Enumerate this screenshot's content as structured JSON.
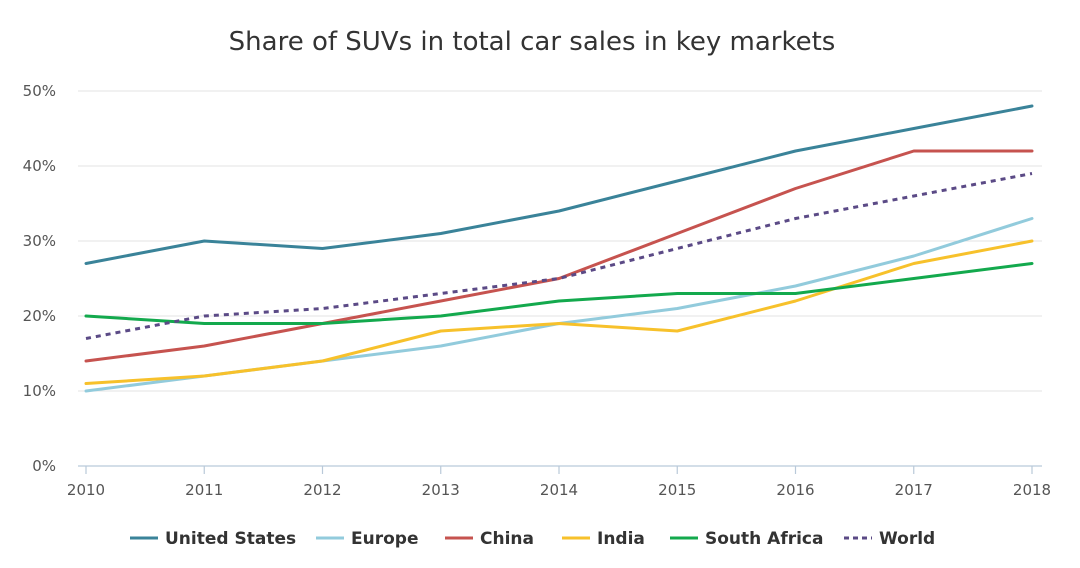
{
  "chart_data": {
    "type": "line",
    "title": "Share of SUVs in total car sales in key markets",
    "xlabel": "",
    "ylabel": "",
    "x": [
      2010,
      2011,
      2012,
      2013,
      2014,
      2015,
      2016,
      2017,
      2018
    ],
    "x_tick_labels": [
      "2010",
      "2011",
      "2012",
      "2013",
      "2014",
      "2015",
      "2016",
      "2017",
      "2018"
    ],
    "ylim": [
      0,
      50
    ],
    "y_ticks": [
      0,
      10,
      20,
      30,
      40,
      50
    ],
    "y_tick_labels": [
      "0%",
      "10%",
      "20%",
      "30%",
      "40%",
      "50%"
    ],
    "grid": true,
    "legend_position": "bottom",
    "series": [
      {
        "name": "United States",
        "color": "#3a8399",
        "dashed": false,
        "values": [
          27,
          30,
          29,
          31,
          34,
          38,
          42,
          45,
          48
        ]
      },
      {
        "name": "Europe",
        "color": "#92cbdc",
        "dashed": false,
        "values": [
          10,
          12,
          14,
          16,
          19,
          21,
          24,
          28,
          33
        ]
      },
      {
        "name": "China",
        "color": "#c6534f",
        "dashed": false,
        "values": [
          14,
          16,
          19,
          22,
          25,
          31,
          37,
          42,
          42
        ]
      },
      {
        "name": "India",
        "color": "#f7c12b",
        "dashed": false,
        "values": [
          11,
          12,
          14,
          18,
          19,
          18,
          22,
          27,
          30
        ]
      },
      {
        "name": "South Africa",
        "color": "#13a94d",
        "dashed": false,
        "values": [
          20,
          19,
          19,
          20,
          22,
          23,
          23,
          25,
          27
        ]
      },
      {
        "name": "World",
        "color": "#5b4a86",
        "dashed": true,
        "values": [
          17,
          20,
          21,
          23,
          25,
          29,
          33,
          36,
          39
        ]
      }
    ]
  }
}
